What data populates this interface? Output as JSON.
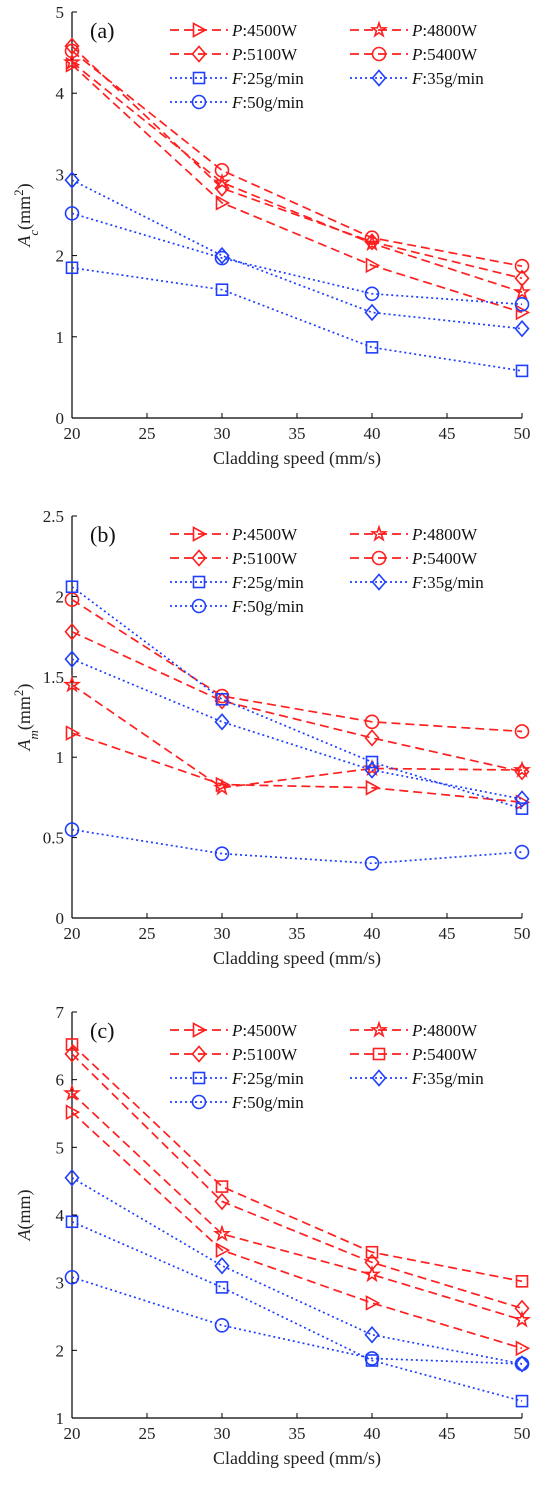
{
  "chart_data": [
    {
      "type": "line",
      "panel_label": "(a)",
      "xlabel": "Cladding speed (mm/s)",
      "ylabel_base": "A",
      "ylabel_sub": "c",
      "ylabel_rest": "(mm",
      "ylabel_sup": "2",
      "ylabel_end": ")",
      "xlim": [
        20,
        50
      ],
      "ylim": [
        0,
        5
      ],
      "x_ticks": [
        "20",
        "25",
        "30",
        "35",
        "40",
        "45",
        "50"
      ],
      "y_ticks": [
        "0",
        "1",
        "2",
        "3",
        "4",
        "5"
      ],
      "x": [
        20,
        30,
        40,
        50
      ],
      "series": [
        {
          "prefix": "P",
          "suffix": ":4500W",
          "color": "#ff1f1f",
          "dash": "dashed",
          "marker": "triangle-right",
          "values": [
            4.35,
            2.65,
            1.88,
            1.3
          ]
        },
        {
          "prefix": "P",
          "suffix": ":4800W",
          "color": "#ff1f1f",
          "dash": "dashed",
          "marker": "star",
          "values": [
            4.38,
            2.9,
            2.15,
            1.55
          ]
        },
        {
          "prefix": "P",
          "suffix": ":5100W",
          "color": "#ff1f1f",
          "dash": "dashed",
          "marker": "diamond",
          "values": [
            4.58,
            2.83,
            2.17,
            1.72
          ]
        },
        {
          "prefix": "P",
          "suffix": ":5400W",
          "color": "#ff1f1f",
          "dash": "dashed",
          "marker": "circle",
          "values": [
            4.52,
            3.05,
            2.22,
            1.87
          ]
        },
        {
          "prefix": "F",
          "suffix": ":25g/min",
          "color": "#1f3fff",
          "dash": "dotted",
          "marker": "square",
          "values": [
            1.85,
            1.58,
            0.87,
            0.58
          ]
        },
        {
          "prefix": "F",
          "suffix": ":35g/min",
          "color": "#1f3fff",
          "dash": "dotted",
          "marker": "diamond",
          "values": [
            2.93,
            2.0,
            1.3,
            1.1
          ]
        },
        {
          "prefix": "F",
          "suffix": ":50g/min",
          "color": "#1f3fff",
          "dash": "dotted",
          "marker": "circle",
          "values": [
            2.52,
            1.97,
            1.53,
            1.4
          ]
        }
      ]
    },
    {
      "type": "line",
      "panel_label": "(b)",
      "xlabel": "Cladding speed (mm/s)",
      "ylabel_base": "A",
      "ylabel_sub": "m",
      "ylabel_rest": "(mm",
      "ylabel_sup": "2",
      "ylabel_end": ")",
      "xlim": [
        20,
        50
      ],
      "ylim": [
        0,
        2.5
      ],
      "x_ticks": [
        "20",
        "25",
        "30",
        "35",
        "40",
        "45",
        "50"
      ],
      "y_ticks": [
        "0",
        "0.5",
        "1",
        "1.5",
        "2",
        "2.5"
      ],
      "x": [
        20,
        30,
        40,
        50
      ],
      "series": [
        {
          "prefix": "P",
          "suffix": ":4500W",
          "color": "#ff1f1f",
          "dash": "dashed",
          "marker": "triangle-right",
          "values": [
            1.15,
            0.83,
            0.81,
            0.72
          ]
        },
        {
          "prefix": "P",
          "suffix": ":4800W",
          "color": "#ff1f1f",
          "dash": "dashed",
          "marker": "star",
          "values": [
            1.45,
            0.81,
            0.93,
            0.92
          ]
        },
        {
          "prefix": "P",
          "suffix": ":5100W",
          "color": "#ff1f1f",
          "dash": "dashed",
          "marker": "diamond",
          "values": [
            1.78,
            1.35,
            1.12,
            0.91
          ]
        },
        {
          "prefix": "P",
          "suffix": ":5400W",
          "color": "#ff1f1f",
          "dash": "dashed",
          "marker": "circle",
          "values": [
            1.98,
            1.38,
            1.22,
            1.16
          ]
        },
        {
          "prefix": "F",
          "suffix": ":25g/min",
          "color": "#1f3fff",
          "dash": "dotted",
          "marker": "square",
          "values": [
            2.06,
            1.36,
            0.97,
            0.68
          ]
        },
        {
          "prefix": "F",
          "suffix": ":35g/min",
          "color": "#1f3fff",
          "dash": "dotted",
          "marker": "diamond",
          "values": [
            1.61,
            1.22,
            0.92,
            0.74
          ]
        },
        {
          "prefix": "F",
          "suffix": ":50g/min",
          "color": "#1f3fff",
          "dash": "dotted",
          "marker": "circle",
          "values": [
            0.55,
            0.4,
            0.34,
            0.41
          ]
        }
      ]
    },
    {
      "type": "line",
      "panel_label": "(c)",
      "xlabel": "Cladding speed (mm/s)",
      "ylabel_base": "A",
      "ylabel_sub": "",
      "ylabel_rest": "(mm",
      "ylabel_sup": "",
      "ylabel_end": ")",
      "xlim": [
        20,
        50
      ],
      "ylim": [
        1,
        7
      ],
      "x_ticks": [
        "20",
        "25",
        "30",
        "35",
        "40",
        "45",
        "50"
      ],
      "y_ticks": [
        "1",
        "2",
        "3",
        "4",
        "5",
        "6",
        "7"
      ],
      "x": [
        20,
        30,
        40,
        50
      ],
      "series": [
        {
          "prefix": "P",
          "suffix": ":4500W",
          "color": "#ff1f1f",
          "dash": "dashed",
          "marker": "triangle-right",
          "values": [
            5.52,
            3.48,
            2.7,
            2.03
          ]
        },
        {
          "prefix": "P",
          "suffix": ":4800W",
          "color": "#ff1f1f",
          "dash": "dashed",
          "marker": "star",
          "values": [
            5.8,
            3.72,
            3.12,
            2.45
          ]
        },
        {
          "prefix": "P",
          "suffix": ":5100W",
          "color": "#ff1f1f",
          "dash": "dashed",
          "marker": "diamond",
          "values": [
            6.38,
            4.2,
            3.3,
            2.62
          ]
        },
        {
          "prefix": "P",
          "suffix": ":5400W",
          "color": "#ff1f1f",
          "dash": "dashed",
          "marker": "square",
          "values": [
            6.52,
            4.42,
            3.45,
            3.02
          ]
        },
        {
          "prefix": "F",
          "suffix": ":25g/min",
          "color": "#1f3fff",
          "dash": "dotted",
          "marker": "square",
          "values": [
            3.9,
            2.93,
            1.85,
            1.25
          ]
        },
        {
          "prefix": "F",
          "suffix": ":35g/min",
          "color": "#1f3fff",
          "dash": "dotted",
          "marker": "diamond",
          "values": [
            4.55,
            3.25,
            2.23,
            1.8
          ]
        },
        {
          "prefix": "F",
          "suffix": ":50g/min",
          "color": "#1f3fff",
          "dash": "dotted",
          "marker": "circle",
          "values": [
            3.08,
            2.37,
            1.88,
            1.8
          ]
        }
      ]
    }
  ]
}
